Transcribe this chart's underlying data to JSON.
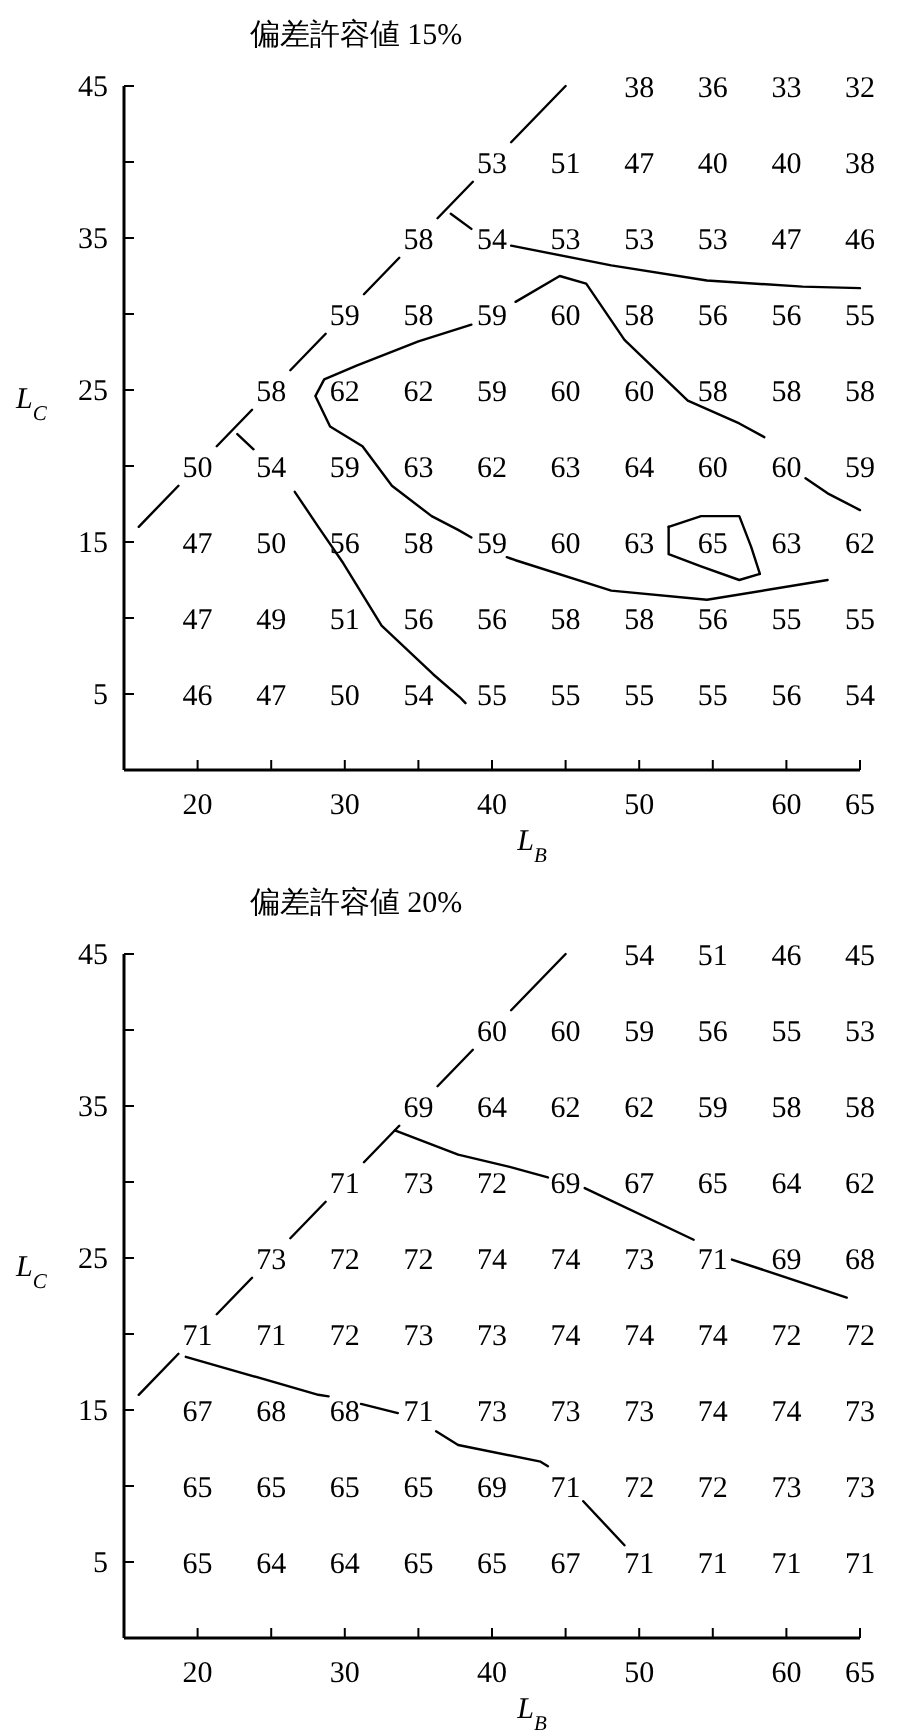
{
  "chart_data": [
    {
      "type": "heatmap",
      "tick_labels": false,
      "data_labels": true,
      "color": "#ffffff",
      "categories": [
        "20",
        "25",
        "30",
        "35",
        "40",
        "45",
        "50",
        "55",
        "60",
        "65"
      ],
      "y_categories": [
        "45",
        "40",
        "35",
        "30",
        "25",
        "20",
        "15",
        "10",
        "5"
      ],
      "cells": [
        [
          null,
          null,
          null,
          null,
          null,
          null,
          38,
          36,
          33,
          32
        ],
        [
          null,
          null,
          null,
          null,
          53,
          51,
          47,
          40,
          40,
          38
        ],
        [
          null,
          null,
          null,
          58,
          54,
          53,
          53,
          53,
          47,
          46
        ],
        [
          null,
          null,
          59,
          58,
          59,
          60,
          58,
          56,
          56,
          55
        ],
        [
          null,
          58,
          62,
          62,
          59,
          60,
          60,
          58,
          58,
          58
        ],
        [
          50,
          54,
          59,
          63,
          62,
          63,
          64,
          60,
          60,
          59
        ],
        [
          47,
          50,
          56,
          58,
          59,
          60,
          63,
          65,
          63,
          62
        ],
        [
          47,
          49,
          51,
          56,
          56,
          58,
          58,
          56,
          55,
          55
        ],
        [
          46,
          47,
          50,
          54,
          55,
          55,
          55,
          55,
          56,
          54
        ]
      ]
    },
    {
      "type": "line",
      "title": "偏差許容値 15%",
      "xlabel": "L$_{B}$",
      "ylabel": "L$_{C}$",
      "xlim": [
        15,
        65
      ],
      "ylim": [
        0,
        45
      ],
      "xticks": [
        20,
        {
          "value": 25,
          "label": null
        },
        30,
        {
          "value": 35,
          "label": null
        },
        40,
        {
          "value": 45,
          "label": null
        },
        50,
        {
          "value": 55,
          "label": null
        },
        60,
        65
      ],
      "yticks": [
        5,
        {
          "value": 10,
          "label": null
        },
        15,
        {
          "value": 20,
          "label": null
        },
        25,
        {
          "value": 30,
          "label": null
        },
        35,
        {
          "value": 40,
          "label": null
        },
        45
      ],
      "series": [
        {
          "color": "#000000",
          "x": [
            16,
            18.7,
            null,
            21.3,
            23.7,
            null,
            26.3,
            28.7,
            null,
            31.3,
            33.7,
            null,
            36.3,
            38.7,
            null,
            41.3,
            45
          ],
          "values": [
            16,
            18.7,
            null,
            21.3,
            23.7,
            null,
            26.3,
            28.7,
            null,
            31.3,
            33.7,
            null,
            36.3,
            38.7,
            null,
            41.3,
            45
          ]
        },
        {
          "color": "#000000",
          "x": [
            22.7,
            23.8,
            null,
            26.6,
            28.2,
            29.9,
            32.5,
            36,
            37.8,
            38.2
          ],
          "values": [
            22.1,
            21.1,
            null,
            18.3,
            16,
            13.6,
            9.5,
            6.3,
            4.8,
            4.4
          ]
        },
        {
          "color": "#000000",
          "x": [
            37.2,
            38.6,
            null,
            41.3,
            48.1,
            54.6,
            61.1,
            65
          ],
          "values": [
            36.6,
            35.6,
            null,
            34.5,
            33.2,
            32.2,
            31.8,
            31.7
          ]
        },
        {
          "color": "#000000",
          "x": [
            65,
            62.8,
            61.3,
            null,
            58.5,
            56.8,
            53.3,
            49,
            46.4,
            44.6,
            41.6,
            null,
            38.6,
            35,
            30.8,
            28.6,
            28,
            29,
            31.2,
            33.2,
            35.9,
            37.7,
            38.6,
            null,
            41,
            41.6,
            48.1,
            54.6,
            62.8
          ],
          "values": [
            17.1,
            18.2,
            19.2,
            null,
            21.9,
            22.8,
            24.3,
            28.3,
            32,
            32.5,
            30.8,
            null,
            29.3,
            28.2,
            26.6,
            25.7,
            24.6,
            22.6,
            21.3,
            18.7,
            16.7,
            15.8,
            15.3,
            null,
            14,
            13.8,
            11.8,
            11.2,
            12.5
          ]
        },
        {
          "color": "#000000",
          "x": [
            52,
            54.2,
            56.8,
            57.6,
            58.2
          ],
          "values": [
            16,
            16.7,
            16.7,
            14.7,
            12.9
          ]
        },
        {
          "color": "#000000",
          "x": [
            52,
            52,
            54.2,
            56.8,
            58.2
          ],
          "values": [
            16,
            14.2,
            13.4,
            12.5,
            12.9
          ]
        }
      ]
    },
    {
      "type": "heatmap",
      "tick_labels": false,
      "data_labels": true,
      "color": "#ffffff",
      "categories": [
        "20",
        "25",
        "30",
        "35",
        "40",
        "45",
        "50",
        "55",
        "60",
        "65"
      ],
      "y_categories": [
        "45",
        "40",
        "35",
        "30",
        "25",
        "20",
        "15",
        "10",
        "5"
      ],
      "cells": [
        [
          null,
          null,
          null,
          null,
          null,
          null,
          54,
          51,
          46,
          45
        ],
        [
          null,
          null,
          null,
          null,
          60,
          60,
          59,
          56,
          55,
          53
        ],
        [
          null,
          null,
          null,
          69,
          64,
          62,
          62,
          59,
          58,
          58
        ],
        [
          null,
          null,
          71,
          73,
          72,
          69,
          67,
          65,
          64,
          62
        ],
        [
          null,
          73,
          72,
          72,
          74,
          74,
          73,
          71,
          69,
          68
        ],
        [
          71,
          71,
          72,
          73,
          73,
          74,
          74,
          74,
          72,
          72
        ],
        [
          67,
          68,
          68,
          71,
          73,
          73,
          73,
          74,
          74,
          73
        ],
        [
          65,
          65,
          65,
          65,
          69,
          71,
          72,
          72,
          73,
          73
        ],
        [
          65,
          64,
          64,
          65,
          65,
          67,
          71,
          71,
          71,
          71
        ]
      ]
    },
    {
      "type": "line",
      "title": "偏差許容値 20%",
      "xlabel": "L$_{B}$",
      "ylabel": "L$_{C}$",
      "xlim": [
        15,
        65
      ],
      "ylim": [
        0,
        45
      ],
      "xticks": [
        20,
        {
          "value": 25,
          "label": null
        },
        30,
        {
          "value": 35,
          "label": null
        },
        40,
        {
          "value": 45,
          "label": null
        },
        50,
        {
          "value": 55,
          "label": null
        },
        60,
        65
      ],
      "yticks": [
        5,
        {
          "value": 10,
          "label": null
        },
        15,
        {
          "value": 20,
          "label": null
        },
        25,
        {
          "value": 30,
          "label": null
        },
        35,
        {
          "value": 40,
          "label": null
        },
        45
      ],
      "series": [
        {
          "color": "#000000",
          "x": [
            16,
            18.7,
            null,
            21.3,
            23.7,
            null,
            26.3,
            28.7,
            null,
            31.3,
            33.7,
            null,
            36.3,
            38.7,
            null,
            41.3,
            45
          ],
          "values": [
            16,
            18.7,
            null,
            21.3,
            23.7,
            null,
            26.3,
            28.7,
            null,
            31.3,
            33.7,
            null,
            36.3,
            38.7,
            null,
            41.3,
            45
          ]
        },
        {
          "color": "#000000",
          "x": [
            33.4,
            37.7,
            41.2,
            43.8,
            null,
            46.3,
            53.7,
            null,
            56.3,
            64.1
          ],
          "values": [
            33.4,
            31.8,
            31,
            30.3,
            null,
            29.6,
            26.2,
            null,
            24.9,
            22.4
          ]
        },
        {
          "color": "#000000",
          "x": [
            19.2,
            28.2,
            28.9,
            null,
            31.1,
            33.6,
            null,
            36.2,
            37.7,
            43.3,
            43.8,
            null,
            46.2,
            49
          ],
          "values": [
            18.5,
            16,
            15.9,
            null,
            15.4,
            14.8,
            null,
            13.6,
            12.7,
            11.6,
            11.3,
            null,
            9,
            6.1
          ]
        }
      ]
    }
  ]
}
